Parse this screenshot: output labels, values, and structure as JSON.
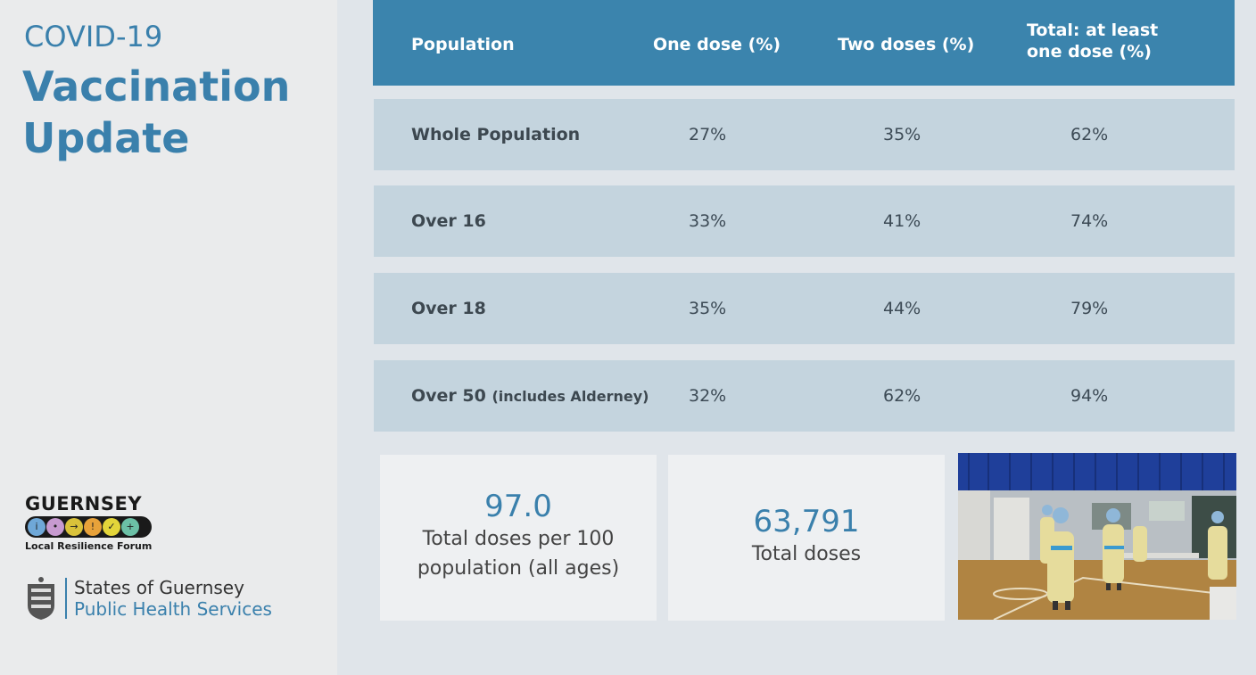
{
  "header": {
    "kicker": "COVID-19",
    "title_line1": "Vaccination",
    "title_line2": "Update"
  },
  "table": {
    "columns": [
      "Population",
      "One dose (%)",
      "Two doses (%)",
      "Total: at least",
      "one dose (%)"
    ],
    "rows": [
      {
        "label": "Whole Population",
        "note": "",
        "one_dose": "27%",
        "two_doses": "35%",
        "total": "62%"
      },
      {
        "label": "Over 16",
        "note": "",
        "one_dose": "33%",
        "two_doses": "41%",
        "total": "74%"
      },
      {
        "label": "Over 18",
        "note": "",
        "one_dose": "35%",
        "two_doses": "44%",
        "total": "79%"
      },
      {
        "label": "Over 50",
        "note": "(includes Alderney)",
        "one_dose": "32%",
        "two_doses": "62%",
        "total": "94%"
      }
    ]
  },
  "stats": [
    {
      "value": "97.0",
      "label_line1": "Total doses per 100",
      "label_line2": "population (all ages)"
    },
    {
      "value": "63,791",
      "label_line1": "Total doses"
    }
  ],
  "logos": {
    "llrf_name": "GUERNSEY",
    "llrf_sub": "Local Resilience Forum",
    "sog_line1": "States of Guernsey",
    "sog_line2": "Public Health Services"
  },
  "colors": {
    "accent": "#3a80ac",
    "header_bg": "#3b84ad",
    "row_bg": "#c4d4de"
  }
}
